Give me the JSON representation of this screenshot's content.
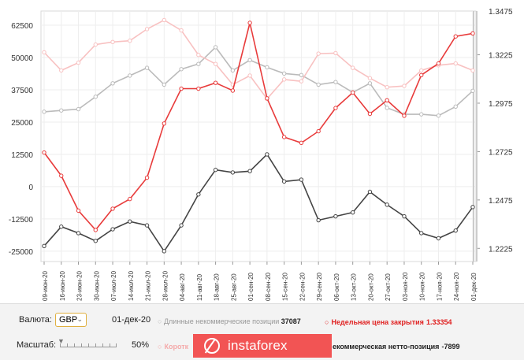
{
  "chart_data": {
    "type": "line",
    "categories": [
      "09-июн-20",
      "16-июн-20",
      "23-июн-20",
      "30-июн-20",
      "07-июл-20",
      "14-июл-20",
      "21-июл-20",
      "28-июл-20",
      "04-авг-20",
      "11-авг-20",
      "18-авг-20",
      "25-авг-20",
      "01-сен-20",
      "08-сен-20",
      "15-сен-20",
      "22-сен-20",
      "29-сен-20",
      "06-окт-20",
      "13-окт-20",
      "20-окт-20",
      "27-окт-20",
      "03-ноя-20",
      "10-ноя-20",
      "17-ноя-20",
      "24-ноя-20",
      "01-дек-20"
    ],
    "left_axis": {
      "ticks": [
        62500,
        50000,
        37500,
        25000,
        12500,
        0,
        -12500,
        -25000
      ],
      "tick_labels": [
        "62500",
        "50000",
        "37500",
        "25000",
        "12500",
        "0",
        "-12500",
        "-25000"
      ],
      "range": [
        -29000,
        68000
      ]
    },
    "right_axis": {
      "ticks": [
        1.3225,
        1.2975,
        1.2725,
        1.2475,
        1.2225
      ],
      "tick_labels": [
        "1.3225",
        "1.2975",
        "1.2725",
        "1.2475",
        "1.2225"
      ],
      "range": [
        1.2157,
        1.3451
      ]
    },
    "series": [
      {
        "name": "Длинные некоммерческие позиции",
        "color": "#bbbbbb",
        "axis": "left",
        "values": [
          29000,
          29500,
          30000,
          34800,
          40000,
          43000,
          46000,
          39500,
          45500,
          47500,
          54000,
          45000,
          49000,
          46200,
          43800,
          43200,
          39500,
          40500,
          36500,
          40000,
          30500,
          28000,
          28000,
          27500,
          31000,
          37087
        ]
      },
      {
        "name": "Короткие некоммерческие позиции",
        "color": "#f8c1c1",
        "axis": "left",
        "values": [
          52000,
          45000,
          48000,
          55000,
          56000,
          56500,
          61000,
          64500,
          60500,
          51000,
          47500,
          39500,
          43000,
          34000,
          41500,
          40800,
          51500,
          51700,
          46000,
          42000,
          38500,
          39000,
          45000,
          47000,
          47700,
          44986
        ]
      },
      {
        "name": "Некоммерческая нетто-позиция",
        "color": "#444444",
        "axis": "left",
        "values": [
          -23000,
          -15500,
          -18000,
          -21000,
          -16500,
          -13500,
          -15000,
          -25000,
          -15000,
          -3000,
          6500,
          5500,
          6000,
          12500,
          2000,
          2700,
          -13000,
          -11500,
          -10000,
          -2000,
          -7000,
          -11500,
          -18000,
          -20000,
          -17000,
          -7899
        ]
      },
      {
        "name": "Недельная цена закрытия",
        "color": "#e83b3b",
        "axis": "right",
        "values": [
          1.272,
          1.26,
          1.242,
          1.232,
          1.243,
          1.248,
          1.259,
          1.287,
          1.305,
          1.305,
          1.308,
          1.304,
          1.339,
          1.3,
          1.28,
          1.277,
          1.283,
          1.295,
          1.303,
          1.292,
          1.299,
          1.291,
          1.312,
          1.318,
          1.332,
          1.33354
        ]
      }
    ]
  },
  "y_top_partial_label": "1.3475",
  "controls": {
    "currency_label": "Валюта:",
    "currency_value": "GBP",
    "date": "01-дек-20",
    "scale_label": "Масштаб:",
    "scale_value": "50%",
    "legend": {
      "long_label": "Длинные некоммерческие позиции",
      "long_value": "37087",
      "close_label": "Недельная цена закрытия",
      "close_value": "1.33354",
      "short_label": "Коротк",
      "net_label": "екоммерческая нетто-позиция",
      "net_value": "-7899"
    }
  },
  "banner": {
    "text": "instaforex"
  },
  "colors": {
    "long": "#bbbbbb",
    "short": "#f8c1c1",
    "net": "#444444",
    "close": "#e83b3b",
    "banner": "#f25454"
  }
}
